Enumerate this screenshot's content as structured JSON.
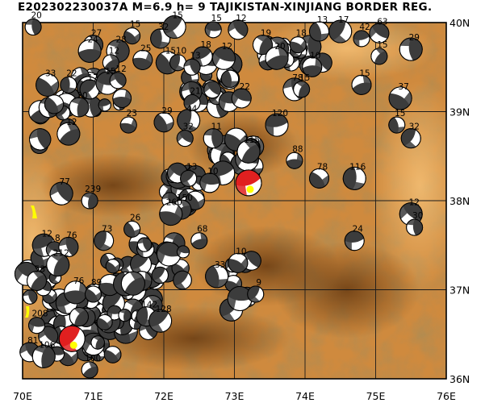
{
  "header": {
    "event_id": "E202302230037A",
    "magnitude_label": "M=6.9",
    "depth_label": "h=  9",
    "region": "TAJIKISTAN-XINJIANG BORDER REG."
  },
  "map": {
    "lon_range": [
      70,
      76
    ],
    "lat_range": [
      36,
      40
    ],
    "lon_ticks": [
      "70E",
      "71E",
      "72E",
      "73E",
      "74E",
      "75E",
      "76E"
    ],
    "lat_ticks": [
      "36N",
      "37N",
      "38N",
      "39N",
      "40N"
    ],
    "colors": {
      "terrain_low": "#f2b25e",
      "terrain_mid": "#c27a2c",
      "terrain_high": "#7a4a1c",
      "grid": "#1a1a1a",
      "beachball_dark": "#3c3c3c",
      "beachball_recent": "#e02020",
      "beachball_light": "#ffffff",
      "highlight": "#ffff00"
    }
  },
  "events": [
    {
      "lon": 70.15,
      "lat": 39.95,
      "depth": "20",
      "recent": false
    },
    {
      "lon": 71.0,
      "lat": 39.75,
      "depth": "27",
      "recent": false
    },
    {
      "lon": 70.95,
      "lat": 39.68,
      "depth": "24",
      "recent": false
    },
    {
      "lon": 71.55,
      "lat": 39.85,
      "depth": "15",
      "recent": false
    },
    {
      "lon": 71.95,
      "lat": 39.82,
      "depth": "32",
      "recent": false
    },
    {
      "lon": 72.15,
      "lat": 39.95,
      "depth": "15",
      "recent": false
    },
    {
      "lon": 72.7,
      "lat": 39.92,
      "depth": "15",
      "recent": false
    },
    {
      "lon": 73.05,
      "lat": 39.92,
      "depth": "12",
      "recent": false
    },
    {
      "lon": 71.35,
      "lat": 39.68,
      "depth": "28",
      "recent": false
    },
    {
      "lon": 71.25,
      "lat": 39.55,
      "depth": "12",
      "recent": false
    },
    {
      "lon": 71.7,
      "lat": 39.58,
      "depth": "25",
      "recent": false
    },
    {
      "lon": 72.05,
      "lat": 39.55,
      "depth": "15",
      "recent": false
    },
    {
      "lon": 72.2,
      "lat": 39.55,
      "depth": "10",
      "recent": false
    },
    {
      "lon": 72.55,
      "lat": 39.62,
      "depth": "18",
      "recent": false
    },
    {
      "lon": 72.85,
      "lat": 39.6,
      "depth": "12",
      "recent": false
    },
    {
      "lon": 72.4,
      "lat": 39.5,
      "depth": "13",
      "recent": false
    },
    {
      "lon": 73.4,
      "lat": 39.75,
      "depth": "19",
      "recent": false
    },
    {
      "lon": 73.6,
      "lat": 39.6,
      "depth": "20",
      "recent": false
    },
    {
      "lon": 73.9,
      "lat": 39.75,
      "depth": "18",
      "recent": false
    },
    {
      "lon": 74.2,
      "lat": 39.9,
      "depth": "13",
      "recent": false
    },
    {
      "lon": 74.5,
      "lat": 39.9,
      "depth": "17",
      "recent": false
    },
    {
      "lon": 74.8,
      "lat": 39.82,
      "depth": "42",
      "recent": false
    },
    {
      "lon": 75.05,
      "lat": 39.88,
      "depth": "63",
      "recent": false
    },
    {
      "lon": 75.5,
      "lat": 39.7,
      "depth": "29",
      "recent": false
    },
    {
      "lon": 75.05,
      "lat": 39.62,
      "depth": "15",
      "recent": false
    },
    {
      "lon": 74.1,
      "lat": 39.5,
      "depth": "10",
      "recent": false
    },
    {
      "lon": 70.35,
      "lat": 39.3,
      "depth": "33",
      "recent": false
    },
    {
      "lon": 70.65,
      "lat": 39.3,
      "depth": "22",
      "recent": false
    },
    {
      "lon": 70.95,
      "lat": 39.25,
      "depth": "17",
      "recent": false
    },
    {
      "lon": 71.2,
      "lat": 39.32,
      "depth": "15",
      "recent": false
    },
    {
      "lon": 71.35,
      "lat": 39.35,
      "depth": "12",
      "recent": false
    },
    {
      "lon": 70.8,
      "lat": 39.05,
      "depth": "20",
      "recent": false
    },
    {
      "lon": 70.65,
      "lat": 38.75,
      "depth": "12",
      "recent": false
    },
    {
      "lon": 71.5,
      "lat": 38.85,
      "depth": "23",
      "recent": false
    },
    {
      "lon": 72.0,
      "lat": 38.88,
      "depth": "29",
      "recent": false
    },
    {
      "lon": 72.35,
      "lat": 38.9,
      "depth": "44",
      "recent": false
    },
    {
      "lon": 72.4,
      "lat": 39.1,
      "depth": "21",
      "recent": false
    },
    {
      "lon": 73.1,
      "lat": 39.15,
      "depth": "22",
      "recent": false
    },
    {
      "lon": 73.85,
      "lat": 39.25,
      "depth": "78",
      "recent": false
    },
    {
      "lon": 73.95,
      "lat": 39.25,
      "depth": "15",
      "recent": false
    },
    {
      "lon": 74.8,
      "lat": 39.3,
      "depth": "15",
      "recent": false
    },
    {
      "lon": 75.35,
      "lat": 39.15,
      "depth": "37",
      "recent": false
    },
    {
      "lon": 75.3,
      "lat": 38.85,
      "depth": "15",
      "recent": false
    },
    {
      "lon": 75.5,
      "lat": 38.7,
      "depth": "32",
      "recent": false
    },
    {
      "lon": 73.6,
      "lat": 38.85,
      "depth": "120",
      "recent": false
    },
    {
      "lon": 72.3,
      "lat": 38.7,
      "depth": "32",
      "recent": false
    },
    {
      "lon": 72.7,
      "lat": 38.7,
      "depth": "11",
      "recent": false
    },
    {
      "lon": 73.2,
      "lat": 38.55,
      "depth": "115",
      "recent": false
    },
    {
      "lon": 73.85,
      "lat": 38.45,
      "depth": "88",
      "recent": false
    },
    {
      "lon": 74.2,
      "lat": 38.25,
      "depth": "78",
      "recent": false
    },
    {
      "lon": 74.7,
      "lat": 38.25,
      "depth": "116",
      "recent": false
    },
    {
      "lon": 72.35,
      "lat": 38.25,
      "depth": "13",
      "recent": false
    },
    {
      "lon": 72.65,
      "lat": 38.2,
      "depth": "10",
      "recent": false
    },
    {
      "lon": 70.55,
      "lat": 38.08,
      "depth": "77",
      "recent": false
    },
    {
      "lon": 70.95,
      "lat": 38.0,
      "depth": "239",
      "recent": false
    },
    {
      "lon": 72.25,
      "lat": 37.9,
      "depth": "150",
      "recent": false
    },
    {
      "lon": 72.1,
      "lat": 37.85,
      "depth": "260",
      "recent": false
    },
    {
      "lon": 71.55,
      "lat": 37.68,
      "depth": "26",
      "recent": false
    },
    {
      "lon": 71.15,
      "lat": 37.55,
      "depth": "73",
      "recent": false
    },
    {
      "lon": 70.3,
      "lat": 37.5,
      "depth": "12",
      "recent": false
    },
    {
      "lon": 70.45,
      "lat": 37.45,
      "depth": "8",
      "recent": false
    },
    {
      "lon": 70.65,
      "lat": 37.48,
      "depth": "76",
      "recent": false
    },
    {
      "lon": 70.5,
      "lat": 37.28,
      "depth": "212",
      "recent": false
    },
    {
      "lon": 72.5,
      "lat": 37.55,
      "depth": "68",
      "recent": false
    },
    {
      "lon": 73.05,
      "lat": 37.3,
      "depth": "10",
      "recent": false
    },
    {
      "lon": 72.75,
      "lat": 37.15,
      "depth": "33",
      "recent": false
    },
    {
      "lon": 73.3,
      "lat": 36.95,
      "depth": "9",
      "recent": false
    },
    {
      "lon": 74.7,
      "lat": 37.55,
      "depth": "24",
      "recent": false
    },
    {
      "lon": 75.5,
      "lat": 37.85,
      "depth": "12",
      "recent": false
    },
    {
      "lon": 75.55,
      "lat": 37.7,
      "depth": "30",
      "recent": false
    },
    {
      "lon": 70.2,
      "lat": 37.1,
      "depth": "53",
      "recent": false
    },
    {
      "lon": 70.75,
      "lat": 36.97,
      "depth": "76",
      "recent": false
    },
    {
      "lon": 71.0,
      "lat": 36.95,
      "depth": "89",
      "recent": false
    },
    {
      "lon": 71.75,
      "lat": 36.7,
      "depth": "142",
      "recent": false
    },
    {
      "lon": 71.95,
      "lat": 36.65,
      "depth": "128",
      "recent": false
    },
    {
      "lon": 70.2,
      "lat": 36.6,
      "depth": "208",
      "recent": false
    },
    {
      "lon": 70.1,
      "lat": 36.3,
      "depth": "81",
      "recent": false
    },
    {
      "lon": 70.3,
      "lat": 36.25,
      "depth": "106",
      "recent": false
    },
    {
      "lon": 70.95,
      "lat": 36.1,
      "depth": "100",
      "recent": false
    },
    {
      "lon": 70.7,
      "lat": 36.45,
      "depth": "",
      "recent": true
    },
    {
      "lon": 73.2,
      "lat": 38.2,
      "depth": "",
      "recent": true
    }
  ]
}
